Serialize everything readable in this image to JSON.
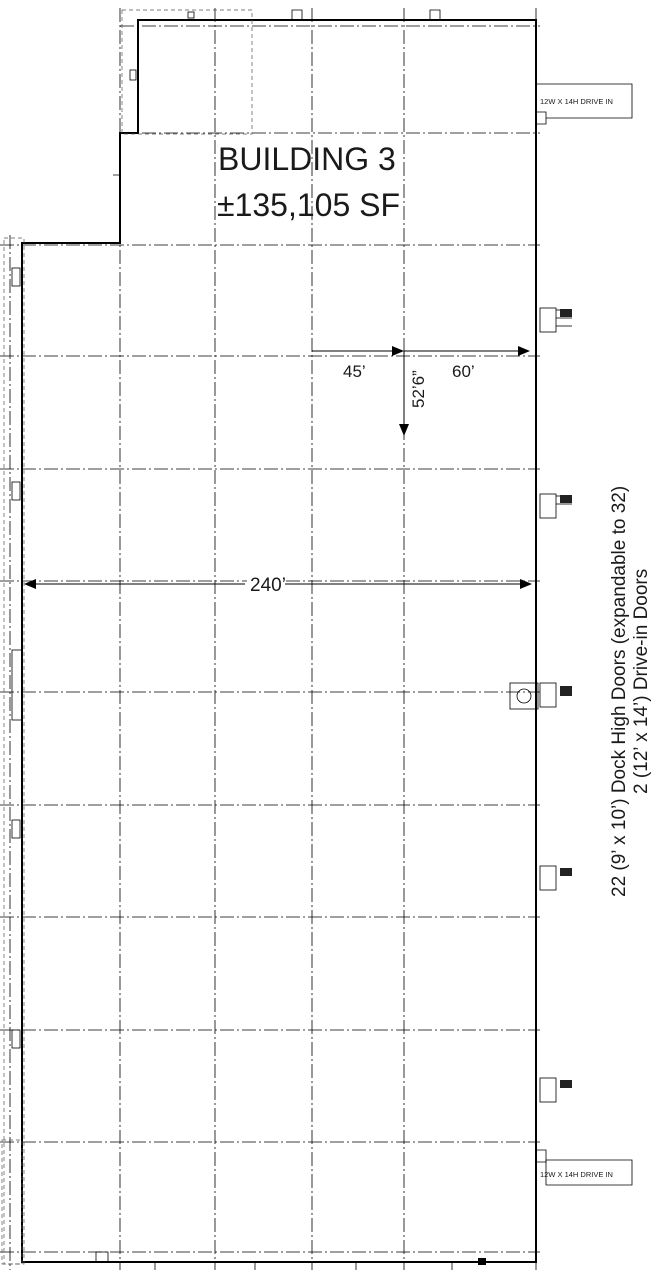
{
  "building": {
    "name": "BUILDING 3",
    "area": "±135,105 SF"
  },
  "dimensions": {
    "bay_width_a": "45’",
    "bay_width_b": "60’",
    "bay_depth": "52’6”",
    "building_width": "240’"
  },
  "drive_in_labels": {
    "top": "12W X 14H DRIVE IN",
    "bottom": "12W X 14H DRIVE IN"
  },
  "door_summary": {
    "line1": "22 (9’ x 10’) Dock High Doors (expandable to 32)",
    "line2": "2 (12’ x 14’) Drive-in Doors"
  }
}
